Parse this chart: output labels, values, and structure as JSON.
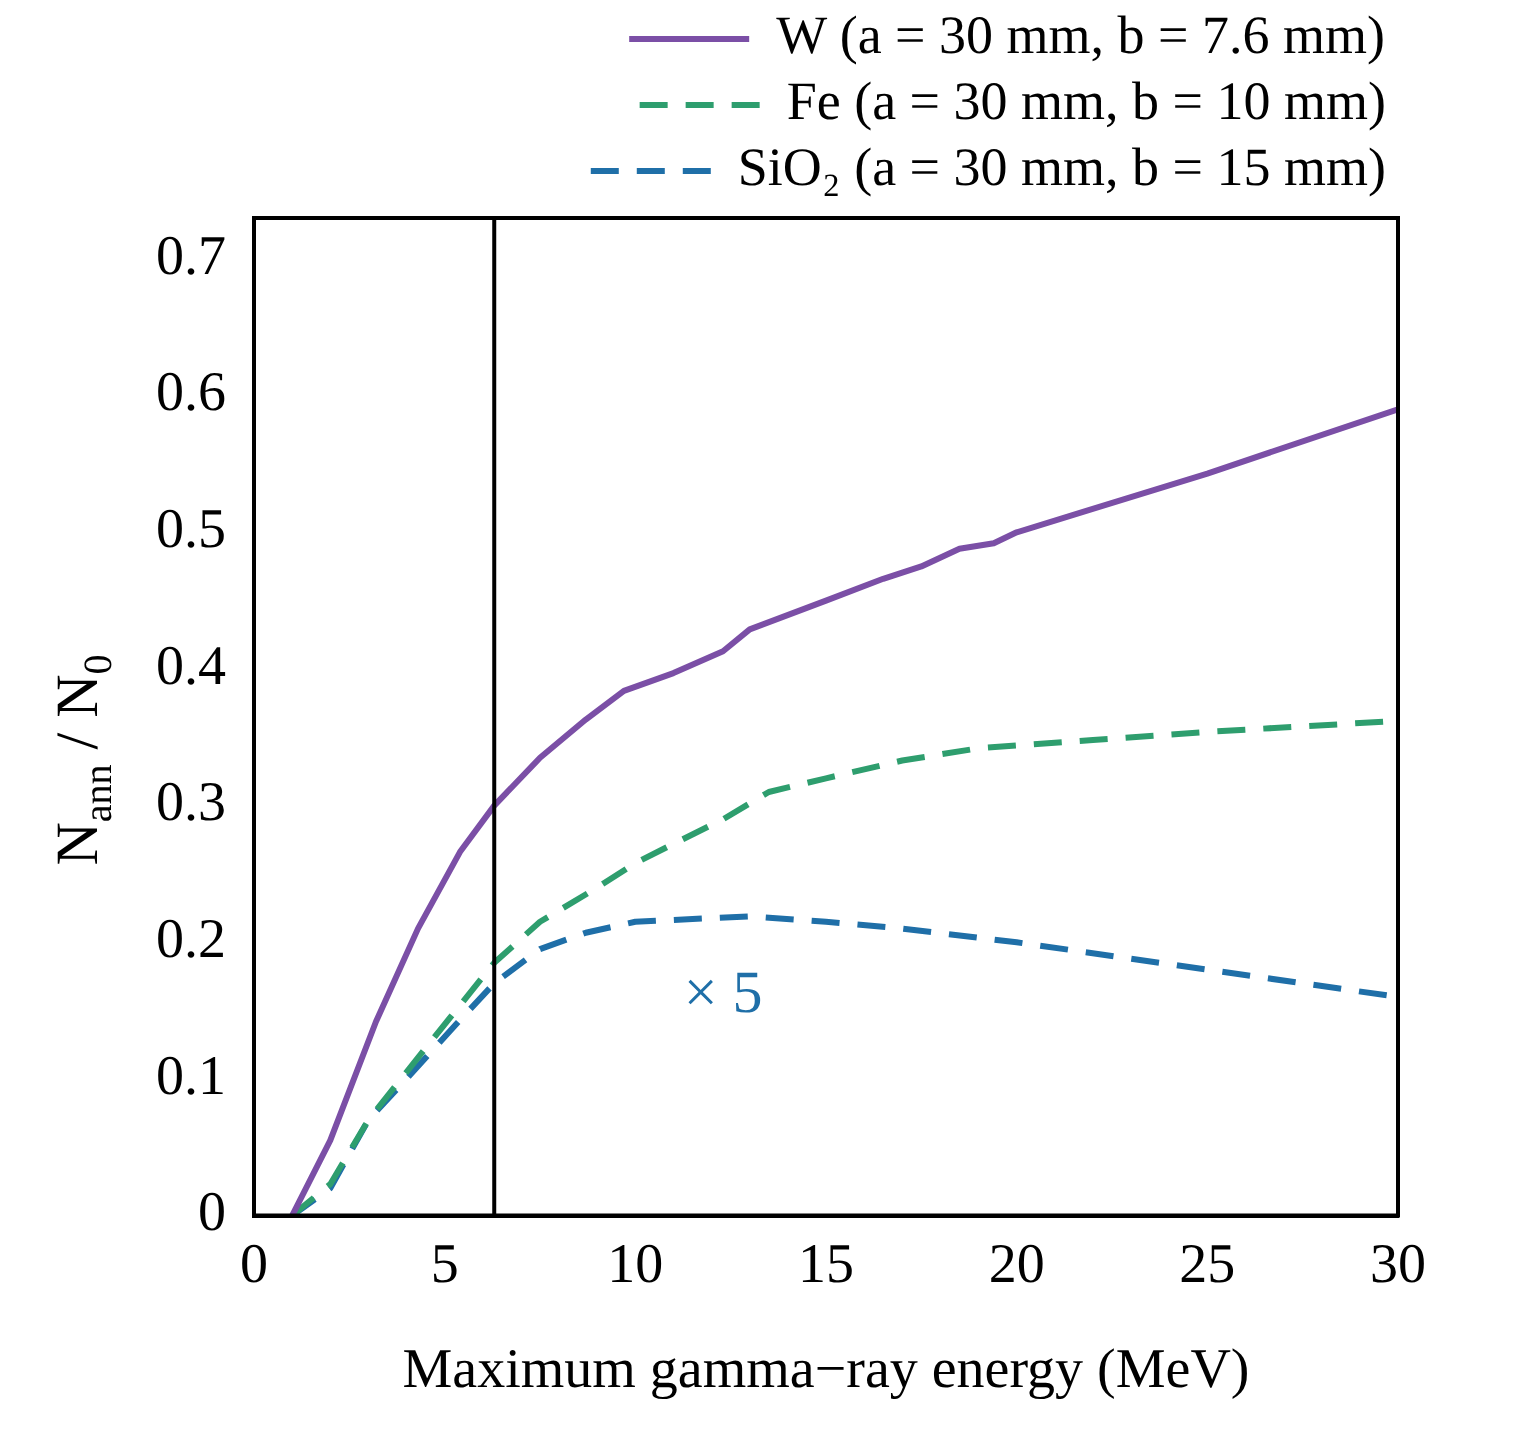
{
  "chart_data": {
    "type": "line",
    "xlabel": "Maximum gamma−ray energy (MeV)",
    "ylabel": "N$_{ann}$ / N$_{0}$",
    "xlim": [
      0,
      30
    ],
    "xticks": [
      0,
      5,
      10,
      15,
      20,
      25,
      30
    ],
    "ylim": [
      0,
      0.73
    ],
    "yticks": [
      0,
      0.1,
      0.2,
      0.3,
      0.4,
      0.5,
      0.6,
      0.7
    ],
    "grid": false,
    "legend": "top right",
    "marker": "none",
    "ref_lines": [
      {
        "axis": "x",
        "value": 6.3,
        "color": "#000000"
      }
    ],
    "annotations": [
      "× 5"
    ],
    "series": [
      {
        "name": "W (a = 30 mm, b = 7.6 mm)",
        "color": "#7b4fa6",
        "line_style": "solid",
        "x": [
          1,
          2,
          3.2,
          4.3,
          5.4,
          6.3,
          7.5,
          8.7,
          9.7,
          11,
          12.3,
          13,
          15,
          16.5,
          17.5,
          18.5,
          19.4,
          20,
          25,
          30
        ],
        "values": [
          0,
          0.055,
          0.142,
          0.21,
          0.266,
          0.3,
          0.335,
          0.363,
          0.384,
          0.397,
          0.413,
          0.429,
          0.45,
          0.466,
          0.475,
          0.488,
          0.492,
          0.5,
          0.543,
          0.59
        ]
      },
      {
        "name": "Fe (a = 30 mm, b = 10 mm)",
        "color": "#2e9e6e",
        "line_style": "dashed",
        "x": [
          1,
          2,
          3,
          4,
          5,
          6.3,
          7.5,
          9,
          10,
          11,
          12.3,
          13.5,
          15,
          17,
          19,
          22,
          25,
          30
        ],
        "values": [
          0,
          0.023,
          0.07,
          0.105,
          0.14,
          0.185,
          0.215,
          0.24,
          0.258,
          0.272,
          0.29,
          0.31,
          0.32,
          0.333,
          0.342,
          0.348,
          0.354,
          0.362
        ]
      },
      {
        "name": "SiO₂ (a = 30 mm, b = 15 mm)",
        "color": "#1f6fa8",
        "line_style": "dashed",
        "x": [
          1,
          2,
          3,
          4,
          5.3,
          6.3,
          7.5,
          8.7,
          10,
          13,
          15,
          17,
          20,
          25,
          30
        ],
        "values": [
          0,
          0.02,
          0.07,
          0.1,
          0.14,
          0.17,
          0.195,
          0.207,
          0.215,
          0.219,
          0.215,
          0.21,
          0.2,
          0.18,
          0.16
        ]
      }
    ]
  }
}
